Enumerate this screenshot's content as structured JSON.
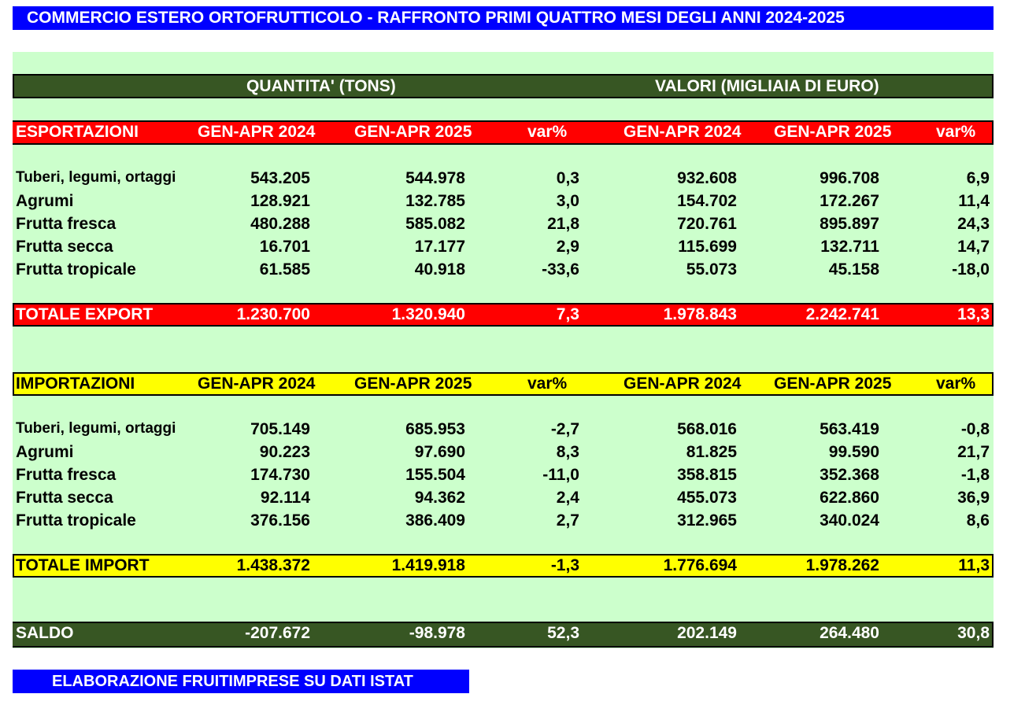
{
  "title": "COMMERCIO ESTERO ORTOFRUTTICOLO - RAFFRONTO PRIMI QUATTRO MESI DEGLI ANNI 2024-2025",
  "group_headers": {
    "quantity": "QUANTITA' (TONS)",
    "value": "VALORI (MIGLIAIA DI EURO)"
  },
  "columns": [
    "GEN-APR 2024",
    "GEN-APR 2025",
    "var%",
    "GEN-APR 2024",
    "GEN-APR 2025",
    "var%"
  ],
  "exports": {
    "label": "ESPORTAZIONI",
    "rows": [
      [
        "Tuberi, legumi, ortaggi",
        "543.205",
        "544.978",
        "0,3",
        "932.608",
        "996.708",
        "6,9"
      ],
      [
        "Agrumi",
        "128.921",
        "132.785",
        "3,0",
        "154.702",
        "172.267",
        "11,4"
      ],
      [
        "Frutta fresca",
        "480.288",
        "585.082",
        "21,8",
        "720.761",
        "895.897",
        "24,3"
      ],
      [
        "Frutta secca",
        "16.701",
        "17.177",
        "2,9",
        "115.699",
        "132.711",
        "14,7"
      ],
      [
        "Frutta tropicale",
        "61.585",
        "40.918",
        "-33,6",
        "55.073",
        "45.158",
        "-18,0"
      ]
    ],
    "total": [
      "TOTALE EXPORT",
      "1.230.700",
      "1.320.940",
      "7,3",
      "1.978.843",
      "2.242.741",
      "13,3"
    ]
  },
  "imports": {
    "label": "IMPORTAZIONI",
    "rows": [
      [
        "Tuberi, legumi, ortaggi",
        "705.149",
        "685.953",
        "-2,7",
        "568.016",
        "563.419",
        "-0,8"
      ],
      [
        "Agrumi",
        "90.223",
        "97.690",
        "8,3",
        "81.825",
        "99.590",
        "21,7"
      ],
      [
        "Frutta fresca",
        "174.730",
        "155.504",
        "-11,0",
        "358.815",
        "352.368",
        "-1,8"
      ],
      [
        "Frutta secca",
        "92.114",
        "94.362",
        "2,4",
        "455.073",
        "622.860",
        "36,9"
      ],
      [
        "Frutta tropicale",
        "376.156",
        "386.409",
        "2,7",
        "312.965",
        "340.024",
        "8,6"
      ]
    ],
    "total": [
      "TOTALE IMPORT",
      "1.438.372",
      "1.419.918",
      "-1,3",
      "1.776.694",
      "1.978.262",
      "11,3"
    ]
  },
  "balance": [
    "SALDO",
    "-207.672",
    "-98.978",
    "52,3",
    "202.149",
    "264.480",
    "30,8"
  ],
  "footer": "ELABORAZIONE FRUITIMPRESE SU DATI ISTAT",
  "colors": {
    "title_bg": "#0000ff",
    "panel_bg": "#ccffcc",
    "dark_band": "#375623",
    "export_band": "#ff0000",
    "import_band": "#ffff00"
  }
}
